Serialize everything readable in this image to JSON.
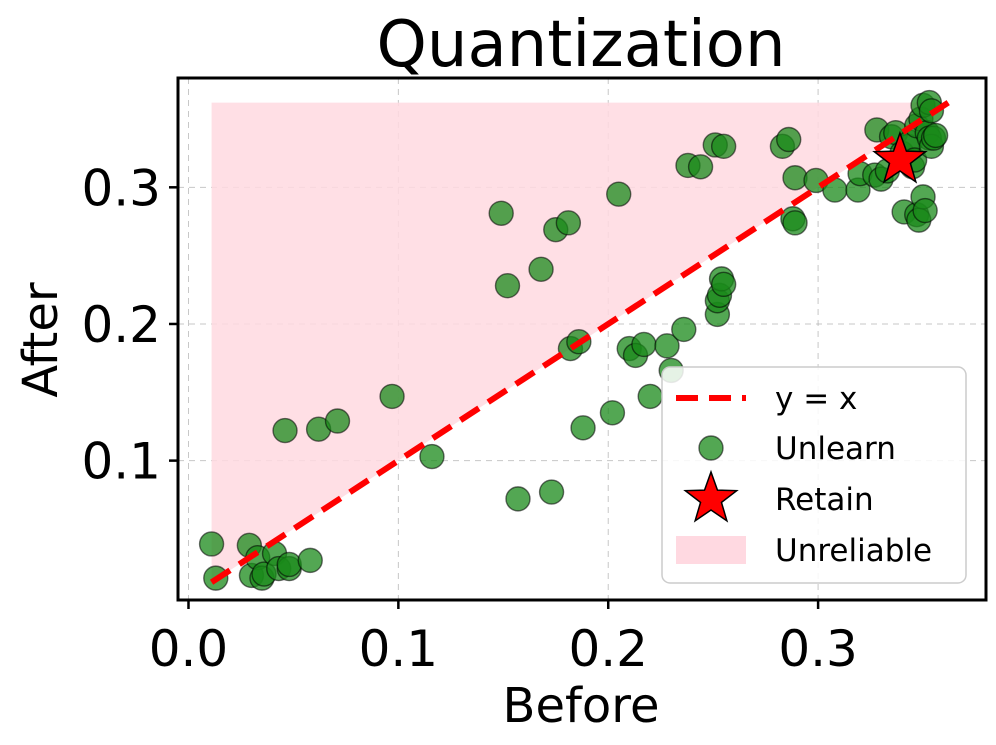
{
  "chart_data": {
    "type": "scatter",
    "title": "Quantization",
    "xlabel": "Before",
    "ylabel": "After",
    "xlim": [
      -0.005,
      0.38
    ],
    "ylim": [
      -0.002,
      0.38
    ],
    "xticks": [
      0.0,
      0.1,
      0.2,
      0.3
    ],
    "xtick_labels": [
      "0.0",
      "0.1",
      "0.2",
      "0.3"
    ],
    "yticks": [
      0.1,
      0.2,
      0.3
    ],
    "ytick_labels": [
      "0.1",
      "0.2",
      "0.3"
    ],
    "grid": true,
    "legend_position": "lower-right",
    "legend": [
      "y = x",
      "Unlearn",
      "Retain",
      "Unreliable"
    ],
    "reference_line": {
      "name": "y = x",
      "x": [
        0.011,
        0.362
      ],
      "y": [
        0.011,
        0.362
      ],
      "color": "#ff0000",
      "style": "dashed"
    },
    "unreliable_region": {
      "name": "Unreliable",
      "x_range": [
        0.011,
        0.362
      ],
      "y_top": 0.362,
      "color": "#ffd9e1"
    },
    "retain": {
      "name": "Retain",
      "x": 0.339,
      "y": 0.32,
      "color": "#ff0000"
    },
    "unlearn": {
      "name": "Unlearn",
      "color": "#1a8a1a",
      "points": [
        [
          0.011,
          0.039
        ],
        [
          0.013,
          0.014
        ],
        [
          0.029,
          0.038
        ],
        [
          0.03,
          0.016
        ],
        [
          0.033,
          0.029
        ],
        [
          0.035,
          0.014
        ],
        [
          0.036,
          0.017
        ],
        [
          0.041,
          0.032
        ],
        [
          0.043,
          0.021
        ],
        [
          0.048,
          0.021
        ],
        [
          0.048,
          0.024
        ],
        [
          0.058,
          0.027
        ],
        [
          0.046,
          0.122
        ],
        [
          0.062,
          0.123
        ],
        [
          0.071,
          0.129
        ],
        [
          0.097,
          0.147
        ],
        [
          0.116,
          0.103
        ],
        [
          0.149,
          0.281
        ],
        [
          0.152,
          0.228
        ],
        [
          0.157,
          0.072
        ],
        [
          0.168,
          0.24
        ],
        [
          0.173,
          0.077
        ],
        [
          0.175,
          0.269
        ],
        [
          0.181,
          0.274
        ],
        [
          0.182,
          0.182
        ],
        [
          0.186,
          0.187
        ],
        [
          0.188,
          0.124
        ],
        [
          0.202,
          0.135
        ],
        [
          0.205,
          0.295
        ],
        [
          0.21,
          0.182
        ],
        [
          0.213,
          0.177
        ],
        [
          0.217,
          0.185
        ],
        [
          0.22,
          0.147
        ],
        [
          0.228,
          0.184
        ],
        [
          0.23,
          0.166
        ],
        [
          0.236,
          0.196
        ],
        [
          0.238,
          0.316
        ],
        [
          0.244,
          0.315
        ],
        [
          0.251,
          0.331
        ],
        [
          0.252,
          0.207
        ],
        [
          0.252,
          0.217
        ],
        [
          0.253,
          0.221
        ],
        [
          0.254,
          0.233
        ],
        [
          0.255,
          0.229
        ],
        [
          0.255,
          0.33
        ],
        [
          0.283,
          0.33
        ],
        [
          0.286,
          0.335
        ],
        [
          0.288,
          0.277
        ],
        [
          0.289,
          0.274
        ],
        [
          0.289,
          0.307
        ],
        [
          0.299,
          0.305
        ],
        [
          0.308,
          0.298
        ],
        [
          0.319,
          0.298
        ],
        [
          0.32,
          0.31
        ],
        [
          0.327,
          0.309
        ],
        [
          0.328,
          0.342
        ],
        [
          0.33,
          0.306
        ],
        [
          0.333,
          0.312
        ],
        [
          0.335,
          0.337
        ],
        [
          0.337,
          0.34
        ],
        [
          0.34,
          0.325
        ],
        [
          0.341,
          0.282
        ],
        [
          0.343,
          0.33
        ],
        [
          0.344,
          0.333
        ],
        [
          0.345,
          0.315
        ],
        [
          0.346,
          0.32
        ],
        [
          0.347,
          0.28
        ],
        [
          0.347,
          0.345
        ],
        [
          0.348,
          0.276
        ],
        [
          0.349,
          0.35
        ],
        [
          0.35,
          0.293
        ],
        [
          0.35,
          0.36
        ],
        [
          0.351,
          0.283
        ],
        [
          0.352,
          0.34
        ],
        [
          0.353,
          0.336
        ],
        [
          0.353,
          0.362
        ],
        [
          0.354,
          0.33
        ],
        [
          0.354,
          0.356
        ],
        [
          0.355,
          0.336
        ],
        [
          0.356,
          0.338
        ]
      ]
    }
  }
}
